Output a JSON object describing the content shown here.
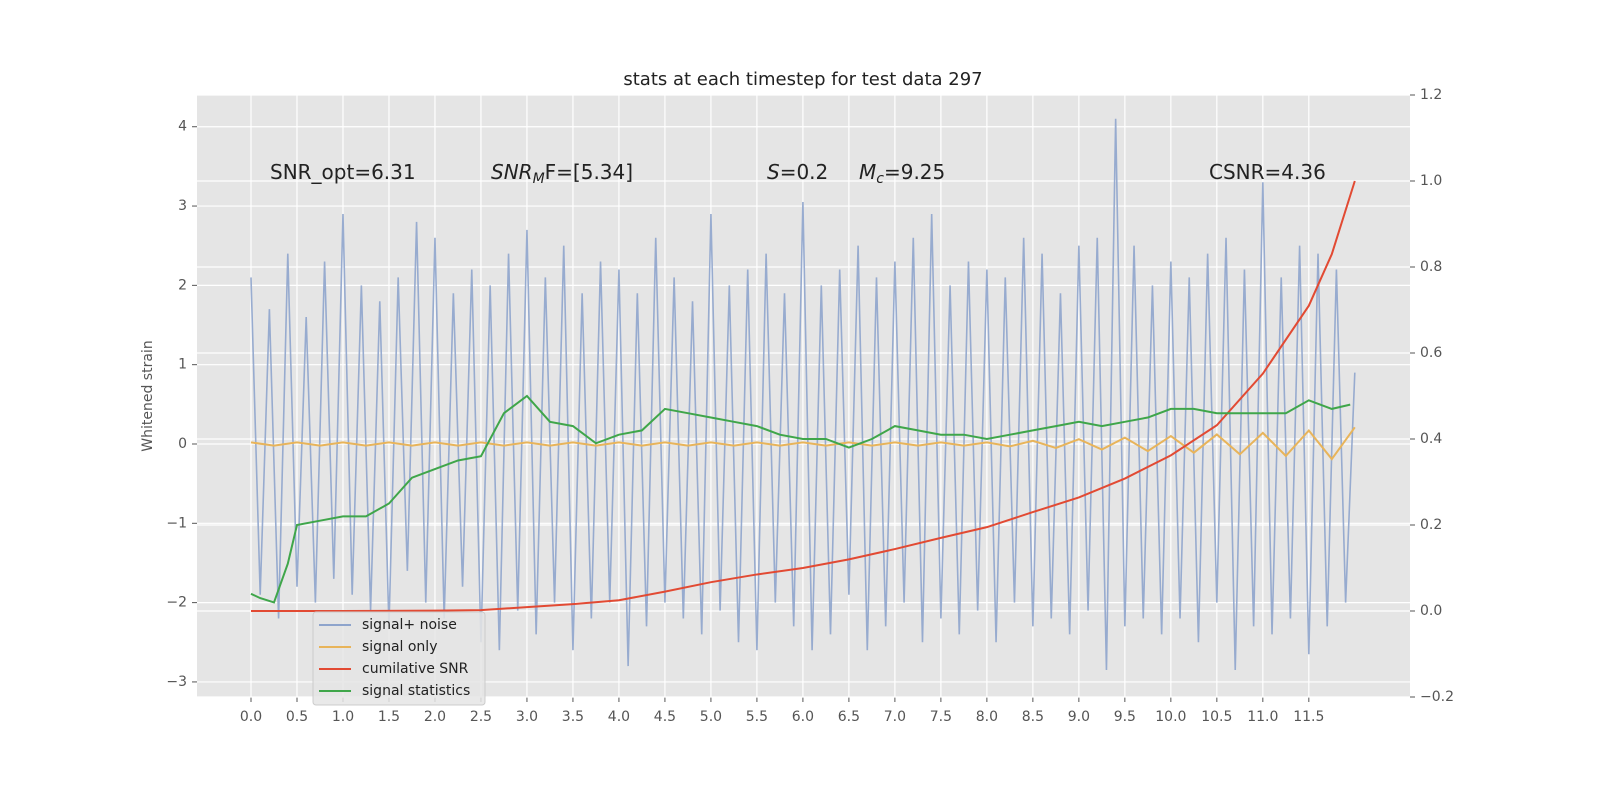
{
  "chart_data": {
    "type": "line",
    "title": "stats at each timestep for test data 297",
    "y_label": "Whitened strain",
    "annotations": [
      {
        "text": "SNR_opt=6.31"
      },
      {
        "text": "SNR",
        "sub": "M",
        "rest": "F=[5.34]"
      },
      {
        "text": "S",
        "rest": "=0.2"
      },
      {
        "text": "M",
        "sub": "c",
        "rest": "=9.25"
      },
      {
        "text": "CSNR=4.36"
      }
    ],
    "x": [
      0,
      0.1,
      0.2,
      0.3,
      0.4,
      0.5,
      0.6,
      0.7,
      0.8,
      0.9,
      1,
      1.1,
      1.2,
      1.3,
      1.4,
      1.5,
      1.6,
      1.7,
      1.8,
      1.9,
      2,
      2.1,
      2.2,
      2.3,
      2.4,
      2.5,
      2.6,
      2.7,
      2.8,
      2.9,
      3,
      3.1,
      3.2,
      3.3,
      3.4,
      3.5,
      3.6,
      3.7,
      3.8,
      3.9,
      4,
      4.1,
      4.2,
      4.3,
      4.4,
      4.5,
      4.6,
      4.7,
      4.8,
      4.9,
      5,
      5.1,
      5.2,
      5.3,
      5.4,
      5.5,
      5.6,
      5.7,
      5.8,
      5.9,
      6,
      6.1,
      6.2,
      6.3,
      6.4,
      6.5,
      6.6,
      6.7,
      6.8,
      6.9,
      7,
      7.1,
      7.2,
      7.3,
      7.4,
      7.5,
      7.6,
      7.7,
      7.8,
      7.9,
      8,
      8.1,
      8.2,
      8.3,
      8.4,
      8.5,
      8.6,
      8.7,
      8.8,
      8.9,
      9,
      9.1,
      9.2,
      9.3,
      9.4,
      9.5,
      9.6,
      9.7,
      9.8,
      9.9,
      10,
      10.1,
      10.2,
      10.3,
      10.4,
      10.5,
      10.6,
      10.7,
      10.8,
      10.9,
      11,
      11.1,
      11.2,
      11.3,
      11.4,
      11.5,
      11.6,
      11.7,
      11.8,
      11.9,
      12
    ],
    "series": [
      {
        "name": "signal+ noise",
        "color": "#8ea4cc",
        "values": [
          2.1,
          -1.9,
          1.7,
          -2.2,
          2.4,
          -1.8,
          1.6,
          -2.0,
          2.3,
          -1.7,
          2.9,
          -1.9,
          2.0,
          -2.1,
          1.8,
          -2.3,
          2.1,
          -1.6,
          2.8,
          -2.0,
          2.6,
          -2.2,
          1.9,
          -1.8,
          2.2,
          -2.5,
          2.0,
          -2.6,
          2.4,
          -2.1,
          2.7,
          -2.4,
          2.1,
          -2.0,
          2.5,
          -2.6,
          1.9,
          -2.2,
          2.3,
          -2.0,
          2.2,
          -2.8,
          1.9,
          -2.3,
          2.6,
          -2.0,
          2.1,
          -2.2,
          1.8,
          -2.4,
          2.9,
          -2.1,
          2.0,
          -2.5,
          2.2,
          -2.6,
          2.4,
          -2.0,
          1.9,
          -2.3,
          3.05,
          -2.6,
          2.0,
          -2.4,
          2.2,
          -1.9,
          2.5,
          -2.6,
          2.1,
          -2.3,
          2.3,
          -2.0,
          2.6,
          -2.5,
          2.9,
          -2.2,
          2.0,
          -2.4,
          2.3,
          -2.1,
          2.2,
          -2.5,
          2.1,
          -2.0,
          2.6,
          -2.3,
          2.4,
          -2.2,
          1.9,
          -2.4,
          2.5,
          -2.1,
          2.6,
          -2.85,
          4.1,
          -2.3,
          2.5,
          -2.2,
          2.0,
          -2.4,
          2.3,
          -2.2,
          2.1,
          -2.5,
          2.4,
          -2.0,
          2.6,
          -2.85,
          2.2,
          -2.3,
          3.3,
          -2.4,
          2.1,
          -2.2,
          2.5,
          -2.65,
          2.4,
          -2.3,
          2.2,
          -2.0,
          0.9
        ]
      },
      {
        "name": "signal only",
        "color": "#e8b45a",
        "x": [
          0,
          0.25,
          0.5,
          0.75,
          1,
          1.25,
          1.5,
          1.75,
          2,
          2.25,
          2.5,
          2.75,
          3,
          3.25,
          3.5,
          3.75,
          4,
          4.25,
          4.5,
          4.75,
          5,
          5.25,
          5.5,
          5.75,
          6,
          6.25,
          6.5,
          6.75,
          7,
          7.25,
          7.5,
          7.75,
          8,
          8.25,
          8.5,
          8.75,
          9,
          9.25,
          9.5,
          9.75,
          10,
          10.25,
          10.5,
          10.75,
          11,
          11.25,
          11.5,
          11.75,
          12
        ],
        "values": [
          0.02,
          -0.02,
          0.02,
          -0.02,
          0.02,
          -0.02,
          0.02,
          -0.02,
          0.02,
          -0.02,
          0.02,
          -0.02,
          0.02,
          -0.02,
          0.02,
          -0.02,
          0.02,
          -0.02,
          0.02,
          -0.02,
          0.02,
          -0.02,
          0.02,
          -0.02,
          0.02,
          -0.02,
          0.02,
          -0.02,
          0.02,
          -0.02,
          0.02,
          -0.02,
          0.02,
          -0.03,
          0.04,
          -0.05,
          0.06,
          -0.07,
          0.08,
          -0.09,
          0.1,
          -0.11,
          0.12,
          -0.13,
          0.14,
          -0.15,
          0.17,
          -0.19,
          0.21
        ]
      },
      {
        "name": "cumilative SNR",
        "color": "#e24a33",
        "axis": "y2",
        "x": [
          0,
          1,
          2,
          2.5,
          3,
          3.5,
          4,
          4.5,
          5,
          5.5,
          6,
          6.5,
          7,
          7.5,
          8,
          8.5,
          9,
          9.5,
          10,
          10.5,
          11,
          11.5,
          11.75,
          12
        ],
        "values": [
          0,
          0,
          0.001,
          0.002,
          0.009,
          0.016,
          0.025,
          0.045,
          0.067,
          0.085,
          0.1,
          0.12,
          0.144,
          0.17,
          0.195,
          0.23,
          0.264,
          0.308,
          0.362,
          0.432,
          0.552,
          0.71,
          0.83,
          1.0
        ]
      },
      {
        "name": "signal statistics",
        "color": "#3fa64a",
        "axis": "y2",
        "x": [
          0,
          0.1,
          0.25,
          0.4,
          0.5,
          0.75,
          1,
          1.25,
          1.5,
          1.75,
          2,
          2.25,
          2.5,
          2.75,
          3,
          3.25,
          3.5,
          3.75,
          4,
          4.25,
          4.5,
          4.75,
          5,
          5.25,
          5.5,
          5.75,
          6,
          6.25,
          6.5,
          6.75,
          7,
          7.25,
          7.5,
          7.75,
          8,
          8.25,
          8.5,
          8.75,
          9,
          9.25,
          9.5,
          9.75,
          10,
          10.25,
          10.5,
          10.75,
          11,
          11.25,
          11.5,
          11.75,
          11.95
        ],
        "values": [
          0.04,
          0.03,
          0.02,
          0.11,
          0.2,
          0.21,
          0.22,
          0.22,
          0.25,
          0.31,
          0.33,
          0.35,
          0.36,
          0.46,
          0.5,
          0.44,
          0.43,
          0.39,
          0.41,
          0.42,
          0.47,
          0.46,
          0.45,
          0.44,
          0.43,
          0.41,
          0.4,
          0.4,
          0.38,
          0.4,
          0.43,
          0.42,
          0.41,
          0.41,
          0.4,
          0.41,
          0.42,
          0.43,
          0.44,
          0.43,
          0.44,
          0.45,
          0.47,
          0.47,
          0.46,
          0.46,
          0.46,
          0.46,
          0.49,
          0.47,
          0.48
        ]
      }
    ],
    "xlim": [
      -0.587,
      12.6
    ],
    "ylim": [
      -3.19,
      4.4
    ],
    "y2lim": [
      -0.2,
      1.2
    ],
    "xticks": [
      {
        "value": 0,
        "label": "0.0"
      },
      0.5,
      {
        "value": 1,
        "label": "1.0"
      },
      1.5,
      {
        "value": 2,
        "label": "2.0"
      },
      2.5,
      {
        "value": 3,
        "label": "3.0"
      },
      3.5,
      {
        "value": 4,
        "label": "4.0"
      },
      4.5,
      {
        "value": 5,
        "label": "5.0"
      },
      5.5,
      {
        "value": 6,
        "label": "6.0"
      },
      6.5,
      {
        "value": 7,
        "label": "7.0"
      },
      7.5,
      {
        "value": 8,
        "label": "8.0"
      },
      8.5,
      {
        "value": 9,
        "label": "9.0"
      },
      9.5,
      {
        "value": 10,
        "label": "10.0"
      },
      10.5,
      {
        "value": 11,
        "label": "11.0"
      },
      11.5
    ],
    "yticks": [
      {
        "value": -3,
        "label": "−3"
      },
      {
        "value": -2,
        "label": "−2"
      },
      {
        "value": -1,
        "label": "−1"
      },
      0,
      1,
      2,
      3,
      4
    ],
    "y2ticks": [
      {
        "value": -0.2,
        "label": "−0.2"
      },
      {
        "value": 0,
        "label": "0.0"
      },
      0.2,
      0.4,
      0.6,
      0.8,
      {
        "value": 1,
        "label": "1.0"
      },
      1.2
    ],
    "grid": true,
    "legend": "lower left"
  }
}
